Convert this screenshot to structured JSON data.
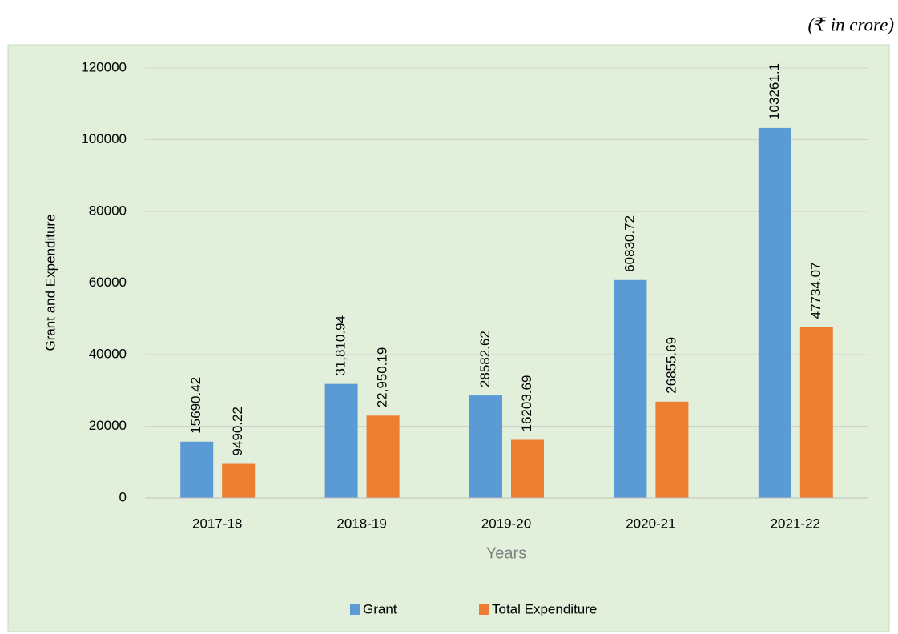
{
  "chart_data": {
    "type": "bar",
    "annotation": "(₹ in crore)",
    "y_label": "Grant and Expenditure",
    "x_label": "Years",
    "categories": [
      "2017-18",
      "2018-19",
      "2019-20",
      "2020-21",
      "2021-22"
    ],
    "series": [
      {
        "name": "Grant",
        "color": "#5b9bd5",
        "values": [
          15690.42,
          31810.94,
          28582.62,
          60830.72,
          103261.1
        ],
        "value_labels": [
          "15690.42",
          "31,810.94",
          "28582.62",
          "60830.72",
          "103261.1"
        ]
      },
      {
        "name": "Total Expenditure",
        "color": "#ed7d31",
        "values": [
          9490.22,
          22950.19,
          16203.69,
          26855.69,
          47734.07
        ],
        "value_labels": [
          "9490.22",
          "22,950.19",
          "16203.69",
          "26855.69",
          "47734.07"
        ]
      }
    ],
    "ylim": [
      0,
      120000
    ],
    "yticks": [
      0,
      20000,
      40000,
      60000,
      80000,
      100000,
      120000
    ],
    "grid": true,
    "legend": "bottom"
  }
}
